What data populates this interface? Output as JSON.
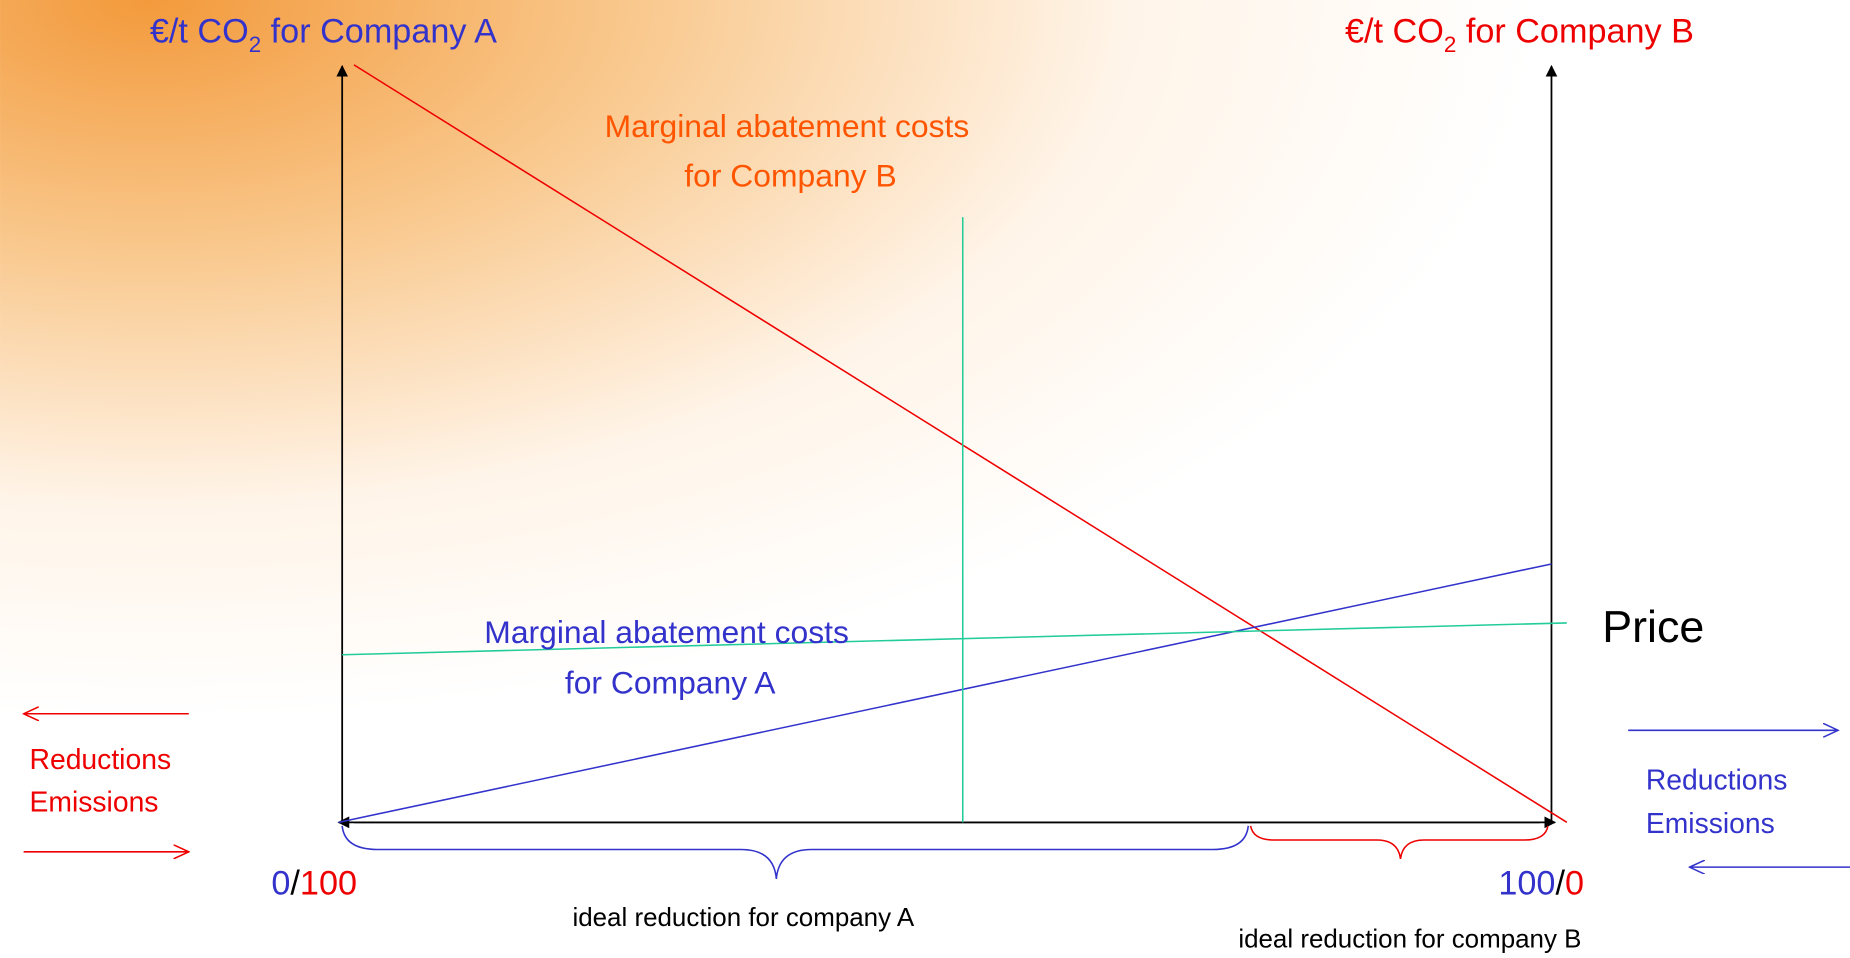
{
  "axes": {
    "left_label": {
      "prefix": "€/t CO",
      "sub": "2",
      "suffix": " for Company A"
    },
    "right_label": {
      "prefix": "€/t CO",
      "sub": "2",
      "suffix": " for Company B"
    }
  },
  "curves": {
    "mac_b": [
      "Marginal abatement costs",
      "for Company B"
    ],
    "mac_a": [
      "Marginal abatement costs",
      "for Company A"
    ],
    "price": "Price"
  },
  "left_side": [
    "Reductions",
    "Emissions"
  ],
  "right_side": [
    "Reductions",
    "Emissions"
  ],
  "x_left": {
    "a": "0",
    "sep": "/",
    "b": "100"
  },
  "x_right": {
    "a": "100",
    "sep": "/",
    "b": "0"
  },
  "braces": {
    "company_a": "ideal reduction for company A",
    "company_b": "ideal reduction for company B"
  }
}
